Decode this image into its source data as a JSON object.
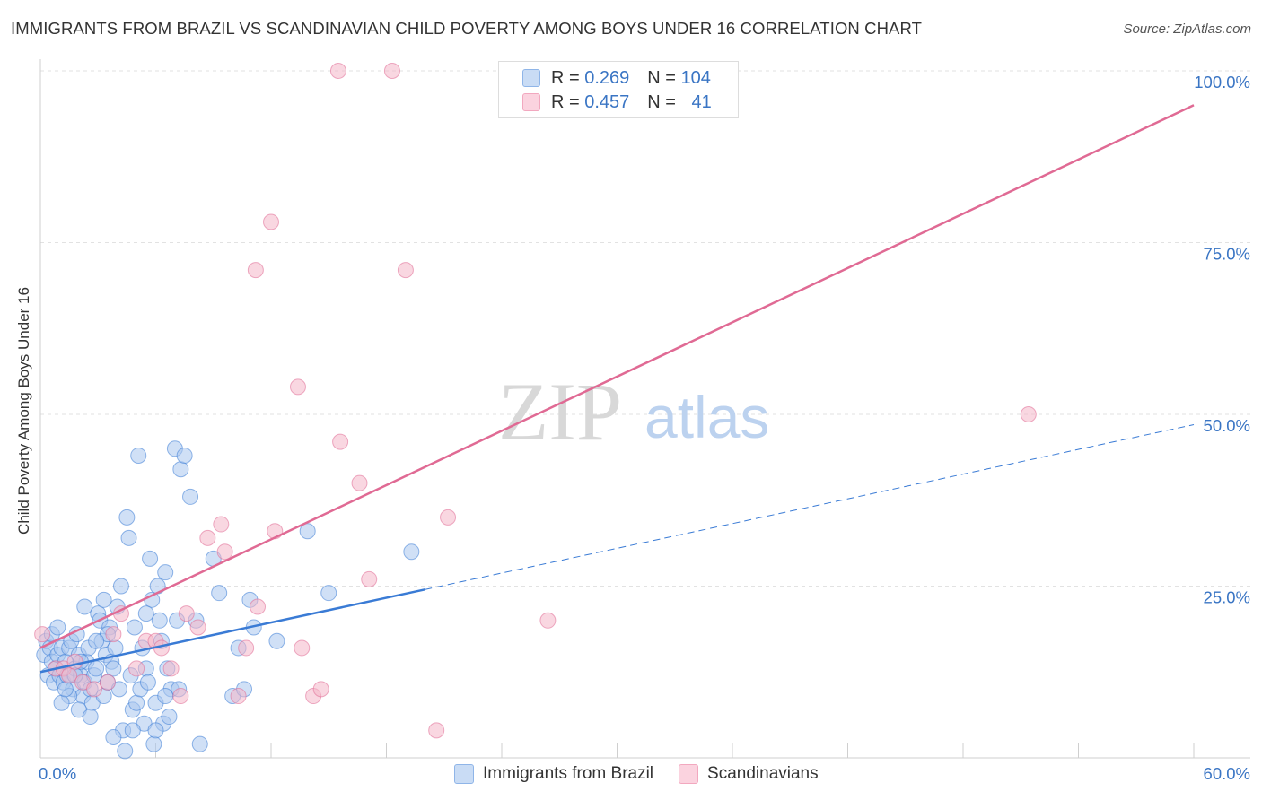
{
  "header": {
    "title": "IMMIGRANTS FROM BRAZIL VS SCANDINAVIAN CHILD POVERTY AMONG BOYS UNDER 16 CORRELATION CHART",
    "source": "Source: ZipAtlas.com"
  },
  "watermark": {
    "zip": "ZIP",
    "atlas": "atlas"
  },
  "legend": {
    "rows": [
      {
        "r_label": "R =",
        "r_value": "0.269",
        "n_label": "N =",
        "n_value": "104",
        "color": "#8fb5e8"
      },
      {
        "r_label": "R =",
        "r_value": "0.457",
        "n_label": "N =",
        "n_value": "41",
        "color": "#f2a8bf"
      }
    ]
  },
  "bottom_legend": {
    "items": [
      {
        "label": "Immigrants from Brazil",
        "color": "#8fb5e8"
      },
      {
        "label": "Scandinavians",
        "color": "#f2a8bf"
      }
    ]
  },
  "chart_data": {
    "type": "scatter",
    "title": "IMMIGRANTS FROM BRAZIL VS SCANDINAVIAN CHILD POVERTY AMONG BOYS UNDER 16 CORRELATION CHART",
    "xlabel": "",
    "ylabel": "Child Poverty Among Boys Under 16",
    "xlim": [
      0,
      60
    ],
    "ylim": [
      0,
      100
    ],
    "x_tick_labels": [
      "0.0%",
      "60.0%"
    ],
    "y_tick_labels": [
      "100.0%",
      "75.0%",
      "50.0%",
      "25.0%"
    ],
    "y_ticks": [
      100,
      75,
      50,
      25
    ],
    "series": [
      {
        "name": "Immigrants from Brazil",
        "color": "#3a7bd5",
        "fill": "#a9c7ef",
        "r": "0.269",
        "n": "104",
        "trend": {
          "solid": [
            [
              0,
              12.5
            ],
            [
              20,
              24.5
            ]
          ],
          "dashed": [
            [
              20,
              24.5
            ],
            [
              60,
              48.5
            ]
          ]
        },
        "points": [
          [
            0.2,
            15
          ],
          [
            0.3,
            17
          ],
          [
            0.4,
            12
          ],
          [
            0.5,
            16
          ],
          [
            0.6,
            14
          ],
          [
            0.7,
            11
          ],
          [
            0.8,
            13
          ],
          [
            0.9,
            15
          ],
          [
            1.0,
            12
          ],
          [
            1.1,
            16
          ],
          [
            1.2,
            11
          ],
          [
            1.3,
            14
          ],
          [
            1.4,
            12
          ],
          [
            1.5,
            16
          ],
          [
            1.6,
            17
          ],
          [
            1.7,
            10
          ],
          [
            1.8,
            13
          ],
          [
            1.9,
            18
          ],
          [
            2.0,
            15
          ],
          [
            2.1,
            12
          ],
          [
            2.2,
            9
          ],
          [
            2.3,
            11
          ],
          [
            2.4,
            14
          ],
          [
            2.5,
            16
          ],
          [
            2.6,
            10
          ],
          [
            2.7,
            8
          ],
          [
            2.8,
            12
          ],
          [
            2.9,
            13
          ],
          [
            3.0,
            21
          ],
          [
            3.1,
            20
          ],
          [
            3.2,
            17
          ],
          [
            3.3,
            9
          ],
          [
            3.4,
            15
          ],
          [
            3.5,
            11
          ],
          [
            3.6,
            19
          ],
          [
            3.7,
            14
          ],
          [
            3.8,
            13
          ],
          [
            3.9,
            16
          ],
          [
            4.0,
            22
          ],
          [
            4.1,
            10
          ],
          [
            4.2,
            25
          ],
          [
            4.3,
            4
          ],
          [
            4.4,
            1
          ],
          [
            4.5,
            35
          ],
          [
            4.6,
            32
          ],
          [
            4.7,
            12
          ],
          [
            4.8,
            7
          ],
          [
            4.9,
            19
          ],
          [
            5.0,
            8
          ],
          [
            5.1,
            44
          ],
          [
            5.2,
            10
          ],
          [
            5.3,
            16
          ],
          [
            5.4,
            5
          ],
          [
            5.5,
            13
          ],
          [
            5.6,
            11
          ],
          [
            5.7,
            29
          ],
          [
            5.8,
            23
          ],
          [
            5.9,
            2
          ],
          [
            6.0,
            8
          ],
          [
            6.1,
            25
          ],
          [
            6.2,
            20
          ],
          [
            6.3,
            17
          ],
          [
            6.4,
            5
          ],
          [
            6.5,
            27
          ],
          [
            6.6,
            13
          ],
          [
            6.7,
            6
          ],
          [
            6.8,
            10
          ],
          [
            7.0,
            45
          ],
          [
            7.1,
            20
          ],
          [
            7.2,
            10
          ],
          [
            7.3,
            42
          ],
          [
            7.5,
            44
          ],
          [
            7.8,
            38
          ],
          [
            8.1,
            20
          ],
          [
            8.3,
            2
          ],
          [
            9.0,
            29
          ],
          [
            9.3,
            24
          ],
          [
            10.0,
            9
          ],
          [
            10.3,
            16
          ],
          [
            10.6,
            10
          ],
          [
            10.9,
            23
          ],
          [
            11.1,
            19
          ],
          [
            12.3,
            17
          ],
          [
            13.9,
            33
          ],
          [
            15.0,
            24
          ],
          [
            19.3,
            30
          ],
          [
            1.5,
            9
          ],
          [
            2.0,
            7
          ],
          [
            3.8,
            3
          ],
          [
            6.0,
            4
          ],
          [
            6.5,
            9
          ],
          [
            0.6,
            18
          ],
          [
            1.1,
            8
          ],
          [
            2.3,
            22
          ],
          [
            3.5,
            18
          ],
          [
            4.8,
            4
          ],
          [
            5.5,
            21
          ],
          [
            1.8,
            12
          ],
          [
            2.6,
            6
          ],
          [
            0.9,
            19
          ],
          [
            1.3,
            10
          ],
          [
            2.1,
            14
          ],
          [
            2.9,
            17
          ],
          [
            3.3,
            23
          ]
        ]
      },
      {
        "name": "Scandinavians",
        "color": "#e06a94",
        "fill": "#f4b6c9",
        "r": "0.457",
        "n": "41",
        "trend": {
          "solid": [
            [
              0,
              16
            ],
            [
              60,
              95
            ]
          ]
        },
        "points": [
          [
            0.1,
            18
          ],
          [
            0.8,
            13
          ],
          [
            1.2,
            13
          ],
          [
            1.5,
            12
          ],
          [
            1.8,
            14
          ],
          [
            2.2,
            11
          ],
          [
            2.8,
            10
          ],
          [
            3.5,
            11
          ],
          [
            3.8,
            18
          ],
          [
            4.2,
            21
          ],
          [
            5.0,
            13
          ],
          [
            5.5,
            17
          ],
          [
            6.0,
            17
          ],
          [
            6.3,
            16
          ],
          [
            6.8,
            13
          ],
          [
            7.3,
            9
          ],
          [
            7.6,
            21
          ],
          [
            8.2,
            19
          ],
          [
            8.7,
            32
          ],
          [
            9.4,
            34
          ],
          [
            9.6,
            30
          ],
          [
            10.3,
            9
          ],
          [
            10.7,
            16
          ],
          [
            11.3,
            22
          ],
          [
            12.2,
            33
          ],
          [
            13.4,
            54
          ],
          [
            13.6,
            16
          ],
          [
            14.2,
            9
          ],
          [
            14.6,
            10
          ],
          [
            15.6,
            46
          ],
          [
            16.6,
            40
          ],
          [
            17.1,
            26
          ],
          [
            19.0,
            71
          ],
          [
            20.6,
            4
          ],
          [
            21.2,
            35
          ],
          [
            26.4,
            20
          ],
          [
            12.0,
            78
          ],
          [
            11.2,
            71
          ],
          [
            15.5,
            100
          ],
          [
            18.3,
            100
          ],
          [
            51.4,
            50
          ]
        ]
      }
    ]
  }
}
